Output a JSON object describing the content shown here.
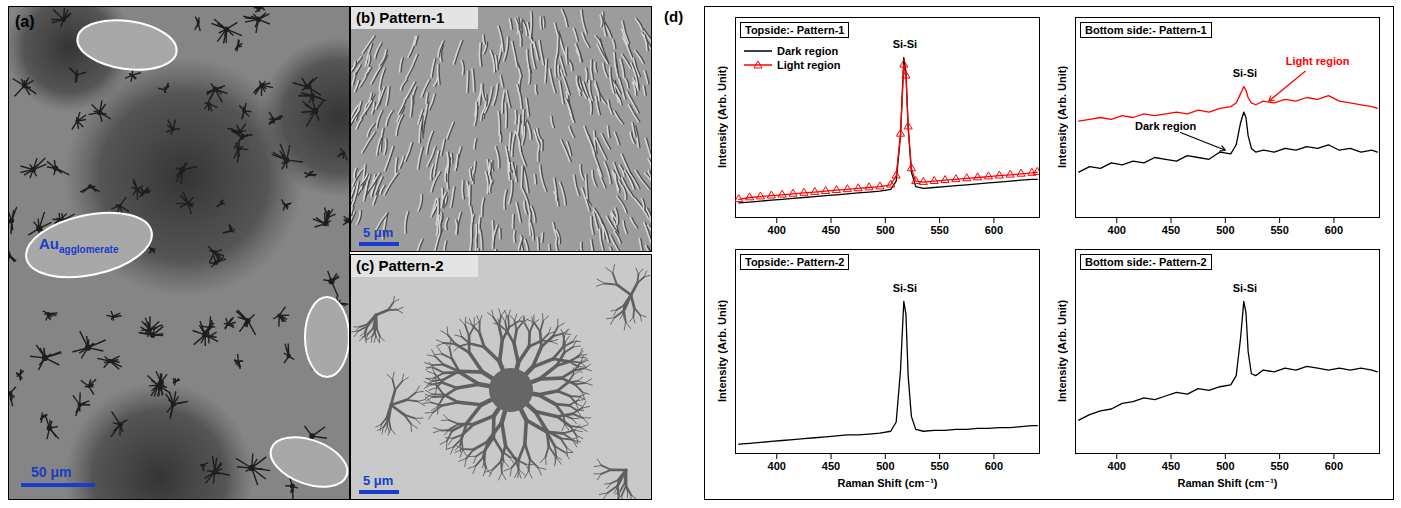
{
  "figure": {
    "panels": [
      {
        "label": "(a)",
        "annotation": "Au",
        "annotation_subscript": "agglomerate",
        "scale_bar": "50 μm"
      },
      {
        "label": "(b)",
        "title": "Pattern-1",
        "scale_bar": "5 μm"
      },
      {
        "label": "(c)",
        "title": "Pattern-2",
        "scale_bar": "5 μm"
      },
      {
        "label": "(d)"
      }
    ]
  },
  "chart_data": [
    {
      "type": "line",
      "title": "Topside:- Pattern-1",
      "y_label": "Intensity (Arb. Unit)",
      "x": [
        365,
        375,
        385,
        395,
        405,
        415,
        425,
        435,
        445,
        455,
        465,
        475,
        485,
        495,
        505,
        510,
        514,
        517,
        519,
        521,
        524,
        528,
        535,
        545,
        555,
        565,
        575,
        585,
        595,
        605,
        615,
        625,
        635,
        640
      ],
      "series": [
        {
          "name": "Dark region",
          "color": "#000000",
          "values": [
            8,
            8.5,
            9,
            9.5,
            10,
            10.5,
            11,
            11.5,
            12,
            12.5,
            13,
            13.5,
            14,
            14.5,
            15.5,
            20,
            45,
            88,
            80,
            50,
            25,
            17,
            16,
            16.5,
            17,
            17.5,
            18,
            18.5,
            19,
            19.5,
            20,
            20.5,
            21,
            21
          ]
        },
        {
          "name": "Light region",
          "color": "#ff0000",
          "marker": "triangle",
          "values": [
            10,
            11,
            11.5,
            12,
            12.5,
            13,
            13.5,
            14,
            14.5,
            15,
            15.5,
            16,
            16.5,
            17,
            18,
            23,
            46,
            84,
            78,
            50,
            27,
            20,
            19.5,
            20,
            20.5,
            21,
            21.5,
            22,
            22.5,
            23,
            23.5,
            24,
            24.5,
            25
          ]
        }
      ],
      "xlim": [
        362,
        642
      ],
      "xticks": [
        400,
        450,
        500,
        550,
        600
      ],
      "ylim": [
        0,
        110
      ],
      "tick_labels": "x",
      "legend": "top-left",
      "annotations": [
        {
          "text": "Si-Si",
          "x": 518,
          "y": 95,
          "color": "#000000"
        }
      ]
    },
    {
      "type": "line",
      "title": "Bottom side:- Pattern-1",
      "y_label": "Intensity (Arb. Unit)",
      "x": [
        365,
        375,
        385,
        395,
        405,
        415,
        425,
        435,
        445,
        455,
        465,
        475,
        485,
        495,
        505,
        510,
        514,
        517,
        519,
        521,
        524,
        528,
        535,
        545,
        555,
        565,
        575,
        585,
        595,
        605,
        615,
        625,
        635,
        640
      ],
      "series": [
        {
          "color": "#ff0000",
          "values": [
            53,
            54,
            55,
            54,
            56,
            55,
            57,
            56,
            57,
            58,
            57,
            59,
            58,
            60,
            61,
            63,
            68,
            72,
            70,
            66,
            63,
            62,
            64,
            63,
            65,
            64,
            66,
            65,
            67,
            64,
            63,
            62,
            61,
            60
          ]
        },
        {
          "color": "#000000",
          "values": [
            25,
            28,
            27,
            30,
            29,
            31,
            30,
            33,
            32,
            31,
            34,
            33,
            32,
            36,
            35,
            40,
            52,
            58,
            55,
            45,
            38,
            36,
            37,
            36,
            38,
            37,
            39,
            38,
            40,
            37,
            38,
            36,
            37,
            36
          ]
        }
      ],
      "xlim": [
        362,
        642
      ],
      "xticks": [
        400,
        450,
        500,
        550,
        600
      ],
      "ylim": [
        0,
        110
      ],
      "tick_labels": "x",
      "annotations": [
        {
          "text": "Si-Si",
          "x": 518,
          "y": 79,
          "color": "#000000"
        },
        {
          "text": "Light region",
          "x": 585,
          "y": 86,
          "color": "#ff0000",
          "arrow_to": [
            540,
            64
          ]
        },
        {
          "text": "Dark region",
          "x": 445,
          "y": 50,
          "color": "#000000",
          "arrow_to": [
            500,
            37
          ]
        }
      ]
    },
    {
      "type": "line",
      "title": "Topside:- Pattern-2",
      "y_label": "Intensity (Arb. Unit)",
      "x_label": "Raman Shift (cm⁻¹)",
      "x": [
        365,
        375,
        385,
        395,
        405,
        415,
        425,
        435,
        445,
        455,
        465,
        475,
        485,
        495,
        505,
        510,
        514,
        517,
        519,
        521,
        524,
        528,
        535,
        545,
        555,
        565,
        575,
        585,
        595,
        605,
        615,
        625,
        635,
        640
      ],
      "series": [
        {
          "color": "#000000",
          "values": [
            5,
            5.5,
            6,
            6.5,
            7,
            7.5,
            8,
            8.5,
            9,
            9.5,
            10,
            10,
            10.5,
            11,
            12,
            17,
            45,
            82,
            75,
            42,
            20,
            13,
            12,
            12.5,
            12.5,
            13,
            13,
            13.5,
            13.5,
            14,
            14,
            14.5,
            15,
            15
          ]
        }
      ],
      "xlim": [
        362,
        642
      ],
      "xticks": [
        400,
        450,
        500,
        550,
        600
      ],
      "ylim": [
        0,
        110
      ],
      "tick_labels": "x",
      "annotations": [
        {
          "text": "Si-Si",
          "x": 518,
          "y": 89,
          "color": "#000000"
        }
      ]
    },
    {
      "type": "line",
      "title": "Bottom side:- Pattern-2",
      "y_label": "Intensity (Arb. Unit)",
      "x_label": "Raman Shift (cm⁻¹)",
      "x": [
        365,
        375,
        385,
        395,
        405,
        415,
        425,
        435,
        445,
        455,
        465,
        475,
        485,
        495,
        505,
        510,
        514,
        517,
        519,
        521,
        524,
        528,
        535,
        545,
        555,
        565,
        575,
        585,
        595,
        605,
        615,
        625,
        635,
        640
      ],
      "series": [
        {
          "color": "#000000",
          "values": [
            18,
            21,
            23,
            24,
            27,
            28,
            30,
            29,
            31,
            33,
            32,
            35,
            34,
            36,
            37,
            42,
            62,
            82,
            76,
            55,
            43,
            42,
            45,
            44,
            46,
            45,
            47,
            46,
            45,
            46,
            45,
            46,
            45,
            44
          ]
        }
      ],
      "xlim": [
        362,
        642
      ],
      "xticks": [
        400,
        450,
        500,
        550,
        600
      ],
      "ylim": [
        0,
        110
      ],
      "tick_labels": "x",
      "annotations": [
        {
          "text": "Si-Si",
          "x": 518,
          "y": 89,
          "color": "#000000"
        }
      ]
    }
  ]
}
